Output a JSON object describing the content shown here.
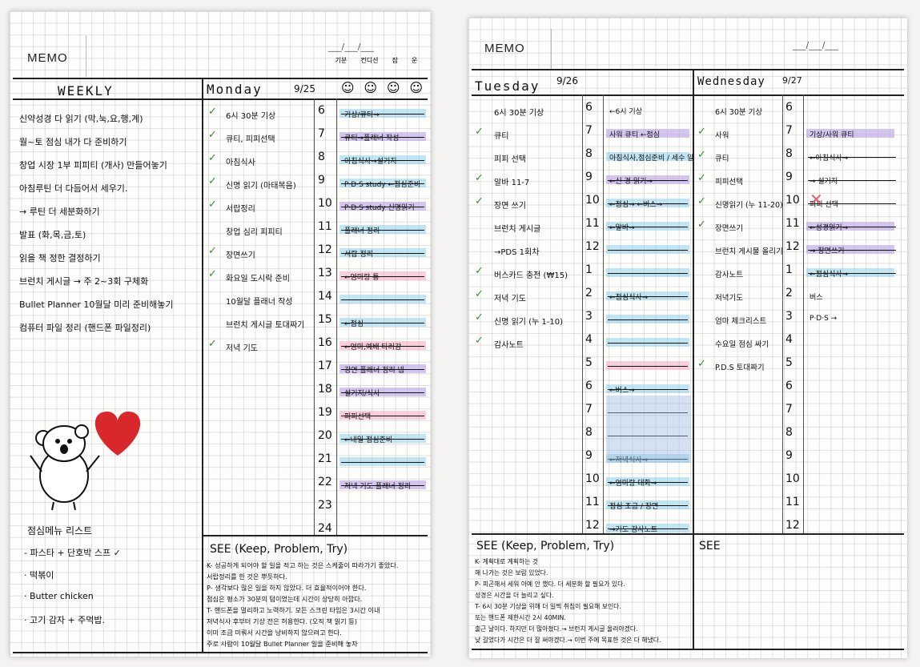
{
  "left_page": {
    "memo_label": "MEMO",
    "date_slots": "___/___/___",
    "mood_labels": [
      "기분",
      "컨디션",
      "잠",
      "운"
    ],
    "weekly_title": "WEEKLY",
    "monday": {
      "day": "Monday",
      "date": "9/25"
    },
    "weekly_items": [
      "신약성경 다 읽기 (막,눅,요,행,계)",
      "월~토 점심 내가 다 준비하기",
      "창업 시장 1부 피피티 (개사) 만들어놓기",
      "아침루틴 더 다듬어서 세우기.",
      "→ 루틴 더 세분화하기",
      "발표 (화,목,금,토)",
      "읽을 책 정한 결정하기",
      "브런치 게시글 → 주 2~3회 구체화",
      "Bullet Planner 10월달 미리 준비해놓기",
      "컴퓨터 파일 정리 (핸드폰 파일정리)"
    ],
    "monday_tasks": [
      {
        "text": "6시 30분 기상",
        "checked": true
      },
      {
        "text": "큐티, 피피선택",
        "checked": true
      },
      {
        "text": "아침식사",
        "checked": true
      },
      {
        "text": "신명 읽기 (마태복음)",
        "checked": true
      },
      {
        "text": "서랍정리",
        "checked": true
      },
      {
        "text": "창업 심리 피피티",
        "checked": false
      },
      {
        "text": "장면쓰기",
        "checked": true
      },
      {
        "text": "화요일 도시락 준비",
        "checked": true
      },
      {
        "text": "10월달 플래너 작성",
        "checked": false
      },
      {
        "text": "브런치 게시글 토대짜기",
        "checked": false
      },
      {
        "text": "저녁 기도",
        "checked": true
      }
    ],
    "hours": [
      "6",
      "7",
      "8",
      "9",
      "10",
      "11",
      "12",
      "13",
      "14",
      "15",
      "16",
      "17",
      "18",
      "19",
      "20",
      "21",
      "22",
      "23",
      "24"
    ],
    "timeline_labels": [
      "기상/큐티→",
      "큐티→플래너 작성",
      "아침식사→설거지",
      "P·D·S study ←점심준비",
      "P·D·S study 신명읽기",
      "플래너 정리",
      "서랍 정리",
      "←엄마랑 통",
      "",
      "←점심",
      "←엄마,예배 타러감",
      "강연 플래너 정리 넵",
      "설거지/식사",
      "피피선택",
      "←내일 점심준비",
      "",
      "저녁 기도 플래너 정리",
      "",
      ""
    ],
    "todo_title": "점심메뉴 리스트",
    "todo_items": [
      "- 파스타 + 단호박 스프 ✓",
      "· 떡볶이",
      "· Butter chicken",
      "· 고기 감자 + 주먹밥."
    ],
    "see_title": "SEE (Keep, Problem, Try)",
    "see_lines": [
      "K- 성공하게 되어야 할 일을 적고 하는 것은 스케줄이 따라가기 좋았다.",
      "서랍정리를 한 것은 뿌듯하다.",
      "P- 생각보다 많은 일을 하지 않았다. 더 효율적이어야 한다.",
      "점심은 평소가 30분의 텀이었는데 시간이 상당히 아깝다.",
      "T- 핸드폰을 멀리하고 노력하기. 모든 스크린 타임은 3시간 이내",
      "저녁식사 후부터 기상 전은 허용한다. (오직 책 읽기 등)",
      "이미 조금 미뤄서 시간을 낭비하지 않으려고 한다.",
      "주로 사람이 10월달 Bullet Planner 일을 준비해 놓자"
    ],
    "sticker": "heart"
  },
  "right_page": {
    "memo_label": "MEMO",
    "date_slots": "___/___/___",
    "tuesday": {
      "day": "Tuesday",
      "date": "9/26"
    },
    "wednesday": {
      "day": "Wednesday",
      "date": "9/27"
    },
    "tuesday_tasks": [
      {
        "text": "6시 30분 기상",
        "checked": false
      },
      {
        "text": "큐티",
        "checked": true
      },
      {
        "text": "피피 선택",
        "checked": false
      },
      {
        "text": "알바 11-7",
        "checked": true
      },
      {
        "text": "장면 쓰기",
        "checked": true
      },
      {
        "text": "브런치 게시글",
        "checked": false
      },
      {
        "text": "→PDS 1회차",
        "checked": false
      },
      {
        "text": "버스카드 충전 (₩15)",
        "checked": true
      },
      {
        "text": "저녁 기도",
        "checked": true
      },
      {
        "text": "신명 읽기 (누 1-10)",
        "checked": true
      },
      {
        "text": "감사노트",
        "checked": true
      }
    ],
    "wednesday_tasks": [
      {
        "text": "6시 30분 기상",
        "checked": false
      },
      {
        "text": "사워",
        "checked": true
      },
      {
        "text": "큐티",
        "checked": true
      },
      {
        "text": "피피선택",
        "checked": true
      },
      {
        "text": "신명읽기 (누 11-20)",
        "checked": true
      },
      {
        "text": "장면쓰기",
        "checked": true
      },
      {
        "text": "브런치 게시물 올리기",
        "checked": false
      },
      {
        "text": "감사노트",
        "checked": false
      },
      {
        "text": "저녁기도",
        "checked": false
      },
      {
        "text": "엄마 체크리스트",
        "checked": false
      },
      {
        "text": "수요일 점심 싸기",
        "checked": false
      },
      {
        "text": "P.D.S 토대짜기",
        "checked": true
      }
    ],
    "tue_hours": [
      "6",
      "7",
      "8",
      "9",
      "10",
      "11",
      "12",
      "1",
      "2",
      "3",
      "4",
      "5",
      "6",
      "7",
      "8",
      "9",
      "10",
      "11",
      "12"
    ],
    "wed_hours": [
      "6",
      "7",
      "8",
      "9",
      "10",
      "11",
      "12",
      "1",
      "2",
      "3",
      "4",
      "5",
      "6",
      "7",
      "8",
      "9",
      "10",
      "11",
      "12"
    ],
    "tue_timeline_labels": [
      "←6시 기상",
      "사워 큐티 ←점심",
      "아침식사,점심준비 / 세수 알",
      "←신 경 읽기→",
      "←점심→ ←버스→",
      "←알바→",
      "",
      "",
      "←점심식사→",
      "",
      "",
      "",
      "←버스→",
      "",
      "",
      "←저녁식사→",
      "←엄마랑 대화→",
      "점심 조금 / 장면",
      "→기도 감사노트"
    ],
    "wed_timeline_labels": [
      "",
      "기상/사워 큐티",
      "←아침식사→",
      "→ 설거지",
      "피피 선택",
      "←성경읽기→",
      "→ 장면쓰기",
      "←점심식사→",
      "버스",
      "P·D·S →",
      "",
      "",
      "",
      "",
      "",
      "",
      "",
      "",
      ""
    ],
    "see_left_title": "SEE (Keep, Problem, Try)",
    "see_left_lines": [
      "K- 계획대로 계획하는 것",
      "해 나가는 것은 보람 있었다.",
      "P- 피곤해서 세워 아예 안 했다. 더 세분화 할 필요가 있다.",
      "성경은 시간을 더 늘리고 싶다.",
      "T- 6시 30분 기상을 위해 더 일찍 취침이 필요해 보인다.",
      "또는 핸드폰 제한시간 2시 40MIN.",
      "출근 날이다. 하지만 더 많아졌다.→ 브런치 게시글 올려야겠다.",
      "낮 길었다가 시간은 더 잘 써야겠다.→ 이번 주에 목표한 것은 다 해냈다."
    ],
    "see_right_title": "SEE"
  }
}
